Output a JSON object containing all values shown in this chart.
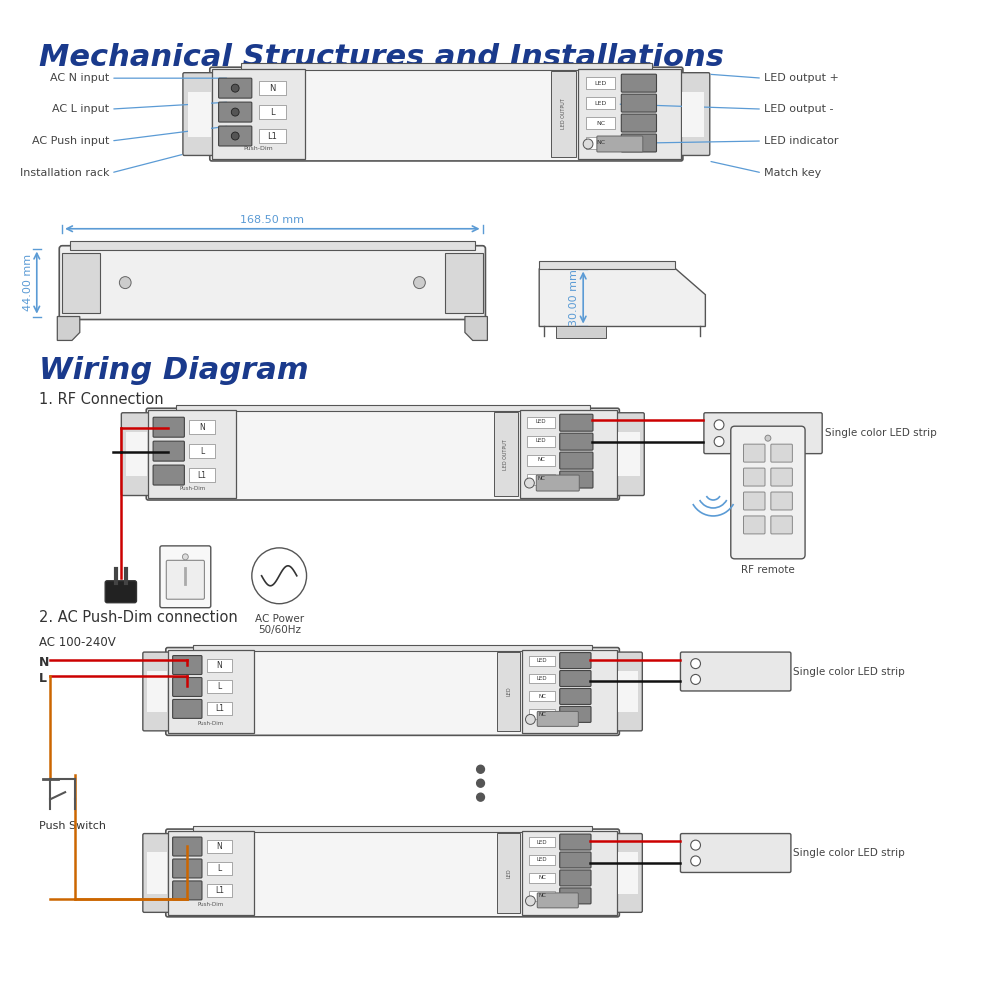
{
  "title1": "Mechanical Structures and Installations",
  "title2": "Wiring Diagram",
  "title1_color": "#1a3a8c",
  "title2_color": "#1a3a8c",
  "section1_label": "1. RF Connection",
  "section2_label": "2. AC Push-Dim connection",
  "labels_left": [
    "AC N input",
    "AC L input",
    "AC Push input",
    "Installation rack"
  ],
  "labels_right": [
    "LED output +",
    "LED output -",
    "LED indicator",
    "Match key"
  ],
  "dim_width": "168.50 mm",
  "dim_height": "44.00 mm",
  "dim_depth": "30.00 mm",
  "label_single_color": "Single color LED strip",
  "label_rf_remote": "RF remote",
  "label_ac_power": "AC Power\n50/60Hz",
  "label_ac_input": "AC 100-240V",
  "label_n": "N",
  "label_l": "L",
  "label_push_switch": "Push Switch",
  "line_color": "#5b9bd5",
  "bg_color": "#ffffff",
  "device_outline": "#555555",
  "device_fill": "#f0f0f0",
  "connector_fill": "#d0d0d0",
  "bracket_fill": "#c8c8c8",
  "red_wire": "#cc0000",
  "black_wire": "#111111",
  "orange_wire": "#cc6600"
}
